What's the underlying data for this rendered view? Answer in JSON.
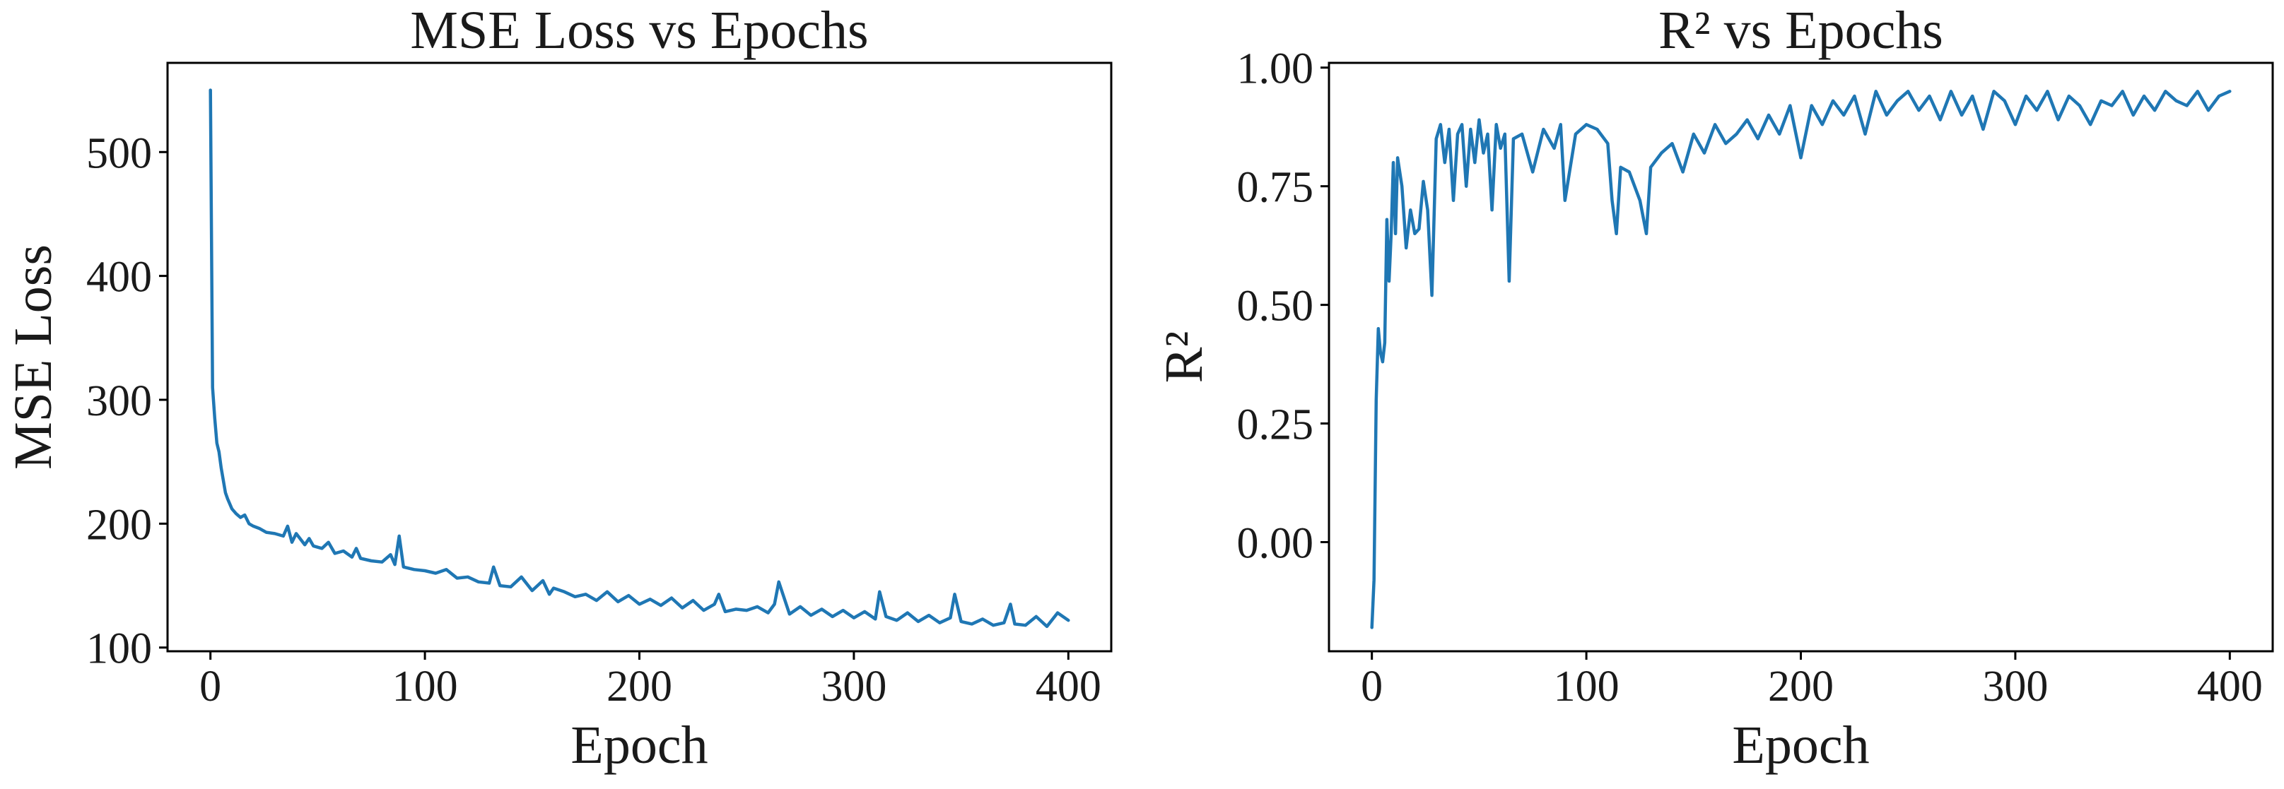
{
  "chart_data": [
    {
      "type": "line",
      "title": "MSE Loss vs Epochs",
      "xlabel": "Epoch",
      "ylabel": "MSE Loss",
      "xlim": [
        -20,
        420
      ],
      "ylim": [
        97,
        572
      ],
      "xticks": [
        0,
        100,
        200,
        300,
        400
      ],
      "yticks": [
        100,
        200,
        300,
        400,
        500
      ],
      "xtick_labels": [
        "0",
        "100",
        "200",
        "300",
        "400"
      ],
      "ytick_labels": [
        "100",
        "200",
        "300",
        "400",
        "500"
      ],
      "grid": false,
      "legend": "none",
      "color": "#1f77b4",
      "series": [
        {
          "x": [
            0,
            1,
            2,
            3,
            4,
            5,
            6,
            7,
            8,
            10,
            12,
            14,
            16,
            18,
            20,
            23,
            26,
            30,
            34,
            36,
            38,
            40,
            44,
            46,
            48,
            52,
            55,
            58,
            62,
            66,
            68,
            70,
            75,
            80,
            84,
            86,
            88,
            90,
            95,
            100,
            105,
            110,
            115,
            120,
            125,
            130,
            132,
            135,
            140,
            145,
            150,
            155,
            158,
            160,
            165,
            170,
            175,
            180,
            185,
            190,
            195,
            200,
            205,
            210,
            215,
            220,
            225,
            230,
            235,
            237,
            240,
            245,
            250,
            255,
            260,
            263,
            265,
            270,
            275,
            280,
            285,
            290,
            295,
            300,
            305,
            310,
            312,
            315,
            320,
            325,
            330,
            335,
            340,
            345,
            347,
            350,
            355,
            360,
            365,
            370,
            373,
            375,
            380,
            385,
            390,
            395,
            400
          ],
          "y": [
            550,
            310,
            285,
            265,
            258,
            245,
            235,
            225,
            220,
            212,
            208,
            205,
            207,
            200,
            198,
            196,
            193,
            192,
            190,
            198,
            185,
            192,
            183,
            188,
            182,
            180,
            185,
            176,
            178,
            173,
            180,
            172,
            170,
            169,
            175,
            167,
            190,
            165,
            163,
            162,
            160,
            163,
            156,
            157,
            153,
            152,
            165,
            150,
            149,
            157,
            146,
            154,
            143,
            148,
            145,
            141,
            143,
            138,
            145,
            137,
            142,
            135,
            139,
            134,
            140,
            132,
            138,
            130,
            135,
            143,
            129,
            131,
            130,
            133,
            128,
            135,
            153,
            127,
            133,
            126,
            131,
            125,
            130,
            124,
            129,
            123,
            145,
            125,
            122,
            128,
            121,
            126,
            120,
            124,
            143,
            121,
            119,
            123,
            118,
            120,
            135,
            119,
            118,
            125,
            117,
            128,
            122
          ]
        }
      ]
    },
    {
      "type": "line",
      "title": "R² vs Epochs",
      "xlabel": "Epoch",
      "ylabel": "R²",
      "xlim": [
        -20,
        420
      ],
      "ylim": [
        -0.23,
        1.01
      ],
      "xticks": [
        0,
        100,
        200,
        300,
        400
      ],
      "yticks": [
        0.0,
        0.25,
        0.5,
        0.75,
        1.0
      ],
      "xtick_labels": [
        "0",
        "100",
        "200",
        "300",
        "400"
      ],
      "ytick_labels": [
        "0.00",
        "0.25",
        "0.50",
        "0.75",
        "1.00"
      ],
      "grid": false,
      "legend": "none",
      "color": "#1f77b4",
      "series": [
        {
          "x": [
            0,
            1,
            2,
            3,
            4,
            5,
            6,
            7,
            8,
            9,
            10,
            11,
            12,
            14,
            16,
            18,
            20,
            22,
            24,
            26,
            28,
            30,
            32,
            34,
            36,
            38,
            40,
            42,
            44,
            46,
            48,
            50,
            52,
            54,
            56,
            58,
            60,
            62,
            64,
            66,
            70,
            75,
            80,
            85,
            88,
            90,
            95,
            100,
            105,
            110,
            112,
            114,
            116,
            120,
            125,
            128,
            130,
            135,
            140,
            145,
            150,
            155,
            160,
            165,
            170,
            175,
            180,
            185,
            190,
            195,
            200,
            205,
            210,
            215,
            220,
            225,
            230,
            235,
            240,
            245,
            250,
            255,
            260,
            265,
            270,
            275,
            280,
            285,
            290,
            295,
            300,
            305,
            310,
            315,
            320,
            325,
            330,
            335,
            340,
            345,
            350,
            355,
            360,
            365,
            370,
            375,
            380,
            385,
            390,
            395,
            400
          ],
          "y": [
            -0.18,
            -0.08,
            0.3,
            0.45,
            0.4,
            0.38,
            0.42,
            0.68,
            0.55,
            0.65,
            0.8,
            0.65,
            0.81,
            0.75,
            0.62,
            0.7,
            0.65,
            0.66,
            0.76,
            0.7,
            0.52,
            0.85,
            0.88,
            0.8,
            0.87,
            0.72,
            0.86,
            0.88,
            0.75,
            0.87,
            0.8,
            0.89,
            0.82,
            0.86,
            0.7,
            0.88,
            0.83,
            0.86,
            0.55,
            0.85,
            0.86,
            0.78,
            0.87,
            0.83,
            0.88,
            0.72,
            0.86,
            0.88,
            0.87,
            0.84,
            0.72,
            0.65,
            0.79,
            0.78,
            0.72,
            0.65,
            0.79,
            0.82,
            0.84,
            0.78,
            0.86,
            0.82,
            0.88,
            0.84,
            0.86,
            0.89,
            0.85,
            0.9,
            0.86,
            0.92,
            0.81,
            0.92,
            0.88,
            0.93,
            0.9,
            0.94,
            0.86,
            0.95,
            0.9,
            0.93,
            0.95,
            0.91,
            0.94,
            0.89,
            0.95,
            0.9,
            0.94,
            0.87,
            0.95,
            0.93,
            0.88,
            0.94,
            0.91,
            0.95,
            0.89,
            0.94,
            0.92,
            0.88,
            0.93,
            0.92,
            0.95,
            0.9,
            0.94,
            0.91,
            0.95,
            0.93,
            0.92,
            0.95,
            0.91,
            0.94,
            0.95
          ]
        }
      ]
    }
  ]
}
